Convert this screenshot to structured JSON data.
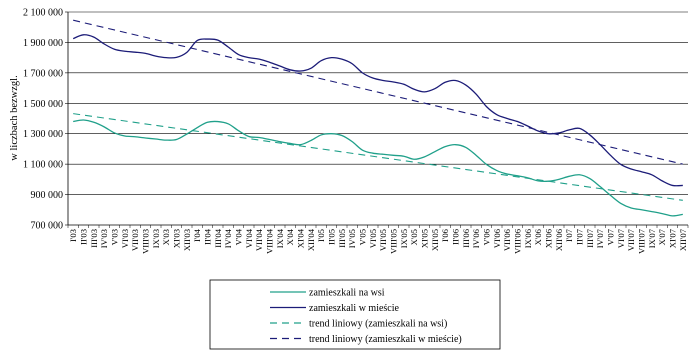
{
  "chart_data": {
    "type": "line",
    "ylabel": "w liczbach bezwzgl.",
    "ylim": [
      700000,
      2100000
    ],
    "y_ticks": [
      "2 100 000",
      "1 900 000",
      "1 700 000",
      "1 500 000",
      "1 300 000",
      "1 100 000",
      "900 000",
      "700 000"
    ],
    "y_tick_values": [
      2100000,
      1900000,
      1700000,
      1500000,
      1300000,
      1100000,
      900000,
      700000
    ],
    "grid": true,
    "legend_position": "bottom-center",
    "x": [
      "I'03",
      "II'03",
      "III'03",
      "IV'03",
      "V'03",
      "VI'03",
      "VII'03",
      "VIII'03",
      "IX'03",
      "X'03",
      "XI'03",
      "XII'03",
      "I'04",
      "II'04",
      "III'04",
      "IV'04",
      "V'04",
      "VI'04",
      "VII'04",
      "VIII'04",
      "IX'04",
      "X'04",
      "XI'04",
      "XII'04",
      "I'05",
      "II'05",
      "III'05",
      "IV'05",
      "V'05",
      "VI'05",
      "VII'05",
      "VIII'05",
      "IX'05",
      "X'05",
      "XI'05",
      "XII'05",
      "I'06",
      "II'06",
      "III'06",
      "IV'06",
      "V'06",
      "VI'06",
      "VII'06",
      "VIII'06",
      "IX'06",
      "X'06",
      "XI'06",
      "XII'06",
      "I'07",
      "II'07",
      "III'07",
      "IV'07",
      "V'07",
      "VI'07",
      "VII'07",
      "VIII'07",
      "IX'07",
      "X'07",
      "XI'07",
      "XII'07"
    ],
    "series": [
      {
        "name": "zamieszkali na wsi",
        "color": "#20a08a",
        "style": "solid",
        "values": [
          1380000,
          1390000,
          1375000,
          1345000,
          1305000,
          1285000,
          1280000,
          1272000,
          1265000,
          1258000,
          1262000,
          1298000,
          1340000,
          1375000,
          1380000,
          1365000,
          1320000,
          1282000,
          1275000,
          1262000,
          1248000,
          1236000,
          1228000,
          1255000,
          1292000,
          1300000,
          1288000,
          1248000,
          1192000,
          1172000,
          1165000,
          1158000,
          1152000,
          1132000,
          1148000,
          1182000,
          1215000,
          1228000,
          1210000,
          1158000,
          1098000,
          1058000,
          1035000,
          1024000,
          1010000,
          990000,
          988000,
          1000000,
          1020000,
          1030000,
          1005000,
          952000,
          895000,
          842000,
          812000,
          800000,
          788000,
          775000,
          760000,
          770000
        ]
      },
      {
        "name": "zamieszkali w mieście",
        "color": "#1c1c78",
        "style": "solid",
        "values": [
          1925000,
          1950000,
          1935000,
          1890000,
          1855000,
          1842000,
          1836000,
          1828000,
          1810000,
          1800000,
          1802000,
          1835000,
          1912000,
          1922000,
          1915000,
          1870000,
          1820000,
          1800000,
          1790000,
          1770000,
          1745000,
          1720000,
          1712000,
          1730000,
          1780000,
          1800000,
          1790000,
          1760000,
          1700000,
          1666000,
          1650000,
          1640000,
          1625000,
          1592000,
          1575000,
          1596000,
          1638000,
          1650000,
          1620000,
          1560000,
          1478000,
          1425000,
          1400000,
          1380000,
          1350000,
          1318000,
          1300000,
          1305000,
          1325000,
          1335000,
          1292000,
          1228000,
          1158000,
          1098000,
          1068000,
          1050000,
          1030000,
          990000,
          960000,
          960000
        ]
      },
      {
        "name": "trend liniowy (zamieszkali na wsi)",
        "color": "#20a08a",
        "style": "dashed",
        "values_start": 1432000,
        "values_end": 862000
      },
      {
        "name": "trend liniowy (zamieszkali w mieście)",
        "color": "#1c1c78",
        "style": "dashed",
        "values_start": 2046000,
        "values_end": 1100000
      }
    ]
  }
}
